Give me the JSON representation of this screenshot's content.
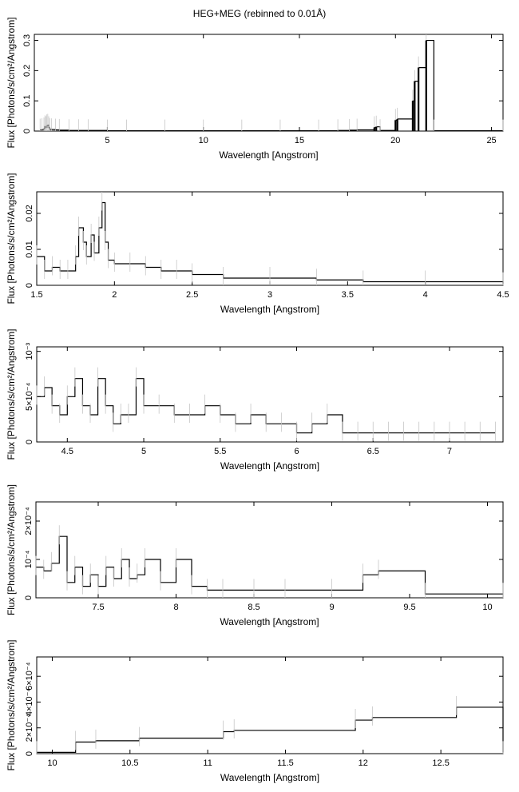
{
  "figure_title": "HEG+MEG (rebinned to 0.01Å)",
  "chart_data": [
    {
      "type": "histogram-step",
      "title": "HEG+MEG (rebinned to 0.01Å)",
      "xlabel": "Wavelength [Angstrom]",
      "ylabel": "Flux [Photons/s/cm²/Angstrom]",
      "xlim": [
        1.2,
        25.6
      ],
      "ylim": [
        0,
        0.32
      ],
      "xticks": [
        5,
        10,
        15,
        20,
        25
      ],
      "xtick_labels": [
        "5",
        "10",
        "15",
        "20",
        "25"
      ],
      "yticks": [
        0,
        0.1,
        0.2,
        0.3
      ],
      "ytick_labels": [
        "0",
        "0.1",
        "0.2",
        "0.3"
      ],
      "grid": false,
      "series": [
        {
          "x": [
            1.5,
            1.6,
            1.7,
            1.75,
            1.8,
            1.85,
            1.9,
            1.95,
            2.0,
            2.1,
            2.3,
            2.5,
            3.0,
            3.5,
            4.0,
            5.0,
            6.0,
            8.0,
            10.0,
            12.0,
            14.0,
            16.0,
            17.0,
            17.6,
            18.0,
            18.9,
            19.0,
            19.2,
            20.0,
            20.1,
            20.9,
            21.0,
            21.2,
            21.6,
            22.0,
            25.6
          ],
          "y": [
            0.004,
            0.005,
            0.008,
            0.015,
            0.012,
            0.018,
            0.02,
            0.012,
            0.006,
            0.005,
            0.004,
            0.003,
            0.002,
            0.002,
            0.002,
            0.001,
            0.001,
            0.001,
            0.001,
            0.001,
            0.001,
            0.001,
            0.002,
            0.003,
            0.004,
            0.012,
            0.014,
            0.002,
            0.036,
            0.04,
            0.1,
            0.165,
            0.21,
            0.3,
            0.001,
            0.001
          ]
        }
      ],
      "spikes": [
        {
          "x": 18.9,
          "y": 0.012
        },
        {
          "x": 19.0,
          "y": 0.014
        },
        {
          "x": 20.0,
          "y": 0.036
        },
        {
          "x": 20.1,
          "y": 0.04
        },
        {
          "x": 20.9,
          "y": 0.1
        },
        {
          "x": 21.0,
          "y": 0.165
        },
        {
          "x": 21.2,
          "y": 0.21
        },
        {
          "x": 21.6,
          "y": 0.3
        }
      ]
    },
    {
      "type": "histogram-step",
      "xlabel": "Wavelength [Angstrom]",
      "ylabel": "Flux [Photons/s/cm²/Angstrom]",
      "xlim": [
        1.5,
        4.5
      ],
      "ylim": [
        0,
        0.026
      ],
      "xticks": [
        1.5,
        2,
        2.5,
        3,
        3.5,
        4,
        4.5
      ],
      "xtick_labels": [
        "1.5",
        "2",
        "2.5",
        "3",
        "3.5",
        "4",
        "4.5"
      ],
      "yticks": [
        0,
        0.01,
        0.02
      ],
      "ytick_labels": [
        "0",
        "0.01",
        "0.02"
      ],
      "grid": false,
      "series": [
        {
          "x": [
            1.5,
            1.55,
            1.6,
            1.65,
            1.7,
            1.75,
            1.77,
            1.8,
            1.82,
            1.85,
            1.87,
            1.9,
            1.92,
            1.94,
            1.96,
            2.0,
            2.1,
            2.2,
            2.3,
            2.4,
            2.5,
            2.7,
            3.0,
            3.3,
            3.6,
            4.0,
            4.5
          ],
          "y": [
            0.008,
            0.004,
            0.005,
            0.004,
            0.004,
            0.008,
            0.016,
            0.012,
            0.008,
            0.014,
            0.009,
            0.016,
            0.023,
            0.012,
            0.007,
            0.006,
            0.006,
            0.005,
            0.004,
            0.004,
            0.003,
            0.002,
            0.002,
            0.0015,
            0.001,
            0.001,
            0.0005
          ]
        }
      ]
    },
    {
      "type": "histogram-step",
      "xlabel": "Wavelength [Angstrom]",
      "ylabel": "Flux [Photons/s/cm²/Angstrom]",
      "xlim": [
        4.3,
        7.35
      ],
      "ylim": [
        0,
        0.00105
      ],
      "xticks": [
        4.5,
        5,
        5.5,
        6,
        6.5,
        7
      ],
      "xtick_labels": [
        "4.5",
        "5",
        "5.5",
        "6",
        "6.5",
        "7"
      ],
      "yticks": [
        0,
        0.0005,
        0.001
      ],
      "ytick_labels": [
        "0",
        "5×10⁻⁴",
        "10⁻³"
      ],
      "grid": false,
      "series": [
        {
          "x": [
            4.3,
            4.35,
            4.4,
            4.45,
            4.5,
            4.55,
            4.6,
            4.65,
            4.7,
            4.75,
            4.8,
            4.85,
            4.9,
            4.95,
            5.0,
            5.1,
            5.2,
            5.3,
            5.4,
            5.5,
            5.6,
            5.7,
            5.8,
            5.9,
            6.0,
            6.1,
            6.2,
            6.3,
            6.4,
            6.5,
            6.6,
            6.7,
            6.8,
            6.9,
            7.0,
            7.1,
            7.2,
            7.3
          ],
          "y": [
            0.0005,
            0.0006,
            0.0004,
            0.0003,
            0.0005,
            0.0007,
            0.0004,
            0.0003,
            0.0007,
            0.0004,
            0.0002,
            0.0003,
            0.0003,
            0.0007,
            0.0004,
            0.0004,
            0.0003,
            0.0003,
            0.0004,
            0.0003,
            0.0002,
            0.0003,
            0.0002,
            0.0002,
            0.0001,
            0.0002,
            0.0003,
            0.0001,
            0.0001,
            0.0001,
            0.0001,
            0.0001,
            0.0001,
            0.0001,
            0.0001,
            0.0001,
            0.0001,
            0.0001
          ]
        }
      ]
    },
    {
      "type": "histogram-step",
      "xlabel": "Wavelength [Angstrom]",
      "ylabel": "Flux [Photons/s/cm²/Angstrom]",
      "xlim": [
        7.1,
        10.1
      ],
      "ylim": [
        0,
        0.00025
      ],
      "xticks": [
        7.5,
        8,
        8.5,
        9,
        9.5,
        10
      ],
      "xtick_labels": [
        "7.5",
        "8",
        "8.5",
        "9",
        "9.5",
        "10"
      ],
      "yticks": [
        0,
        0.0001,
        0.0002
      ],
      "ytick_labels": [
        "0",
        "10⁻⁴",
        "2×10⁻⁴"
      ],
      "grid": false,
      "series": [
        {
          "x": [
            7.1,
            7.15,
            7.2,
            7.25,
            7.3,
            7.35,
            7.4,
            7.45,
            7.5,
            7.55,
            7.6,
            7.65,
            7.7,
            7.75,
            7.8,
            7.9,
            8.0,
            8.1,
            8.2,
            8.3,
            8.5,
            8.7,
            9.0,
            9.2,
            9.3,
            9.6,
            10.1
          ],
          "y": [
            8e-05,
            7e-05,
            9e-05,
            0.00016,
            4e-05,
            8e-05,
            3e-05,
            6e-05,
            3e-05,
            8e-05,
            5e-05,
            0.0001,
            5e-05,
            6e-05,
            0.0001,
            4e-05,
            0.0001,
            3e-05,
            2e-05,
            2e-05,
            2e-05,
            2e-05,
            2e-05,
            6e-05,
            7e-05,
            1e-05,
            1e-05
          ]
        }
      ]
    },
    {
      "type": "histogram-step",
      "xlabel": "Wavelength [Angstrom]",
      "ylabel": "Flux [Photons/s/cm²/Angstrom]",
      "xlim": [
        9.9,
        12.9
      ],
      "ylim": [
        0,
        0.00075
      ],
      "xticks": [
        10,
        10.5,
        11,
        11.5,
        12,
        12.5
      ],
      "xtick_labels": [
        "10",
        "10.5",
        "11",
        "11.5",
        "12",
        "12.5"
      ],
      "yticks": [
        0,
        0.0002,
        0.0004,
        0.0006
      ],
      "ytick_labels": [
        "0",
        "2×10⁻⁴",
        "4×10⁻⁴",
        "6×10⁻⁴"
      ],
      "grid": false,
      "series": [
        {
          "x": [
            9.9,
            10.15,
            10.28,
            10.56,
            11.1,
            11.17,
            11.95,
            12.06,
            12.6,
            12.9
          ],
          "y": [
            1e-05,
            9e-05,
            0.0001,
            0.00012,
            0.00017,
            0.00018,
            0.00026,
            0.00028,
            0.00036,
            1e-05
          ]
        }
      ]
    }
  ]
}
